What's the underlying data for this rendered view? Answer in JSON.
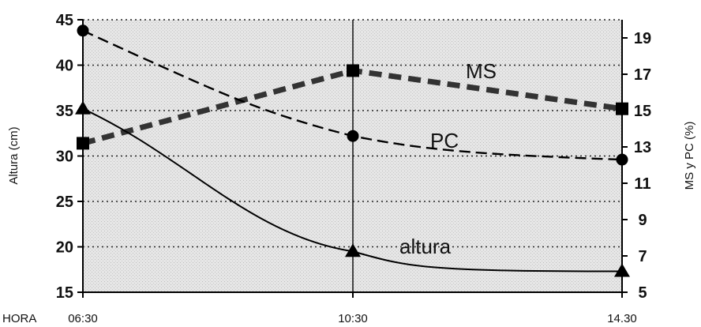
{
  "chart_data": {
    "type": "line",
    "x_label": "HORA",
    "x": [
      "06:30",
      "10:30",
      "14.30"
    ],
    "y_left": {
      "label": "Altura (cm)",
      "range": [
        15,
        45
      ],
      "ticks": [
        "15",
        "20",
        "25",
        "30",
        "35",
        "40",
        "45"
      ]
    },
    "y_right": {
      "label": "MS y PC (%)",
      "range": [
        5,
        20
      ],
      "ticks": [
        "5",
        "7",
        "9",
        "11",
        "13",
        "15",
        "17",
        "19"
      ]
    },
    "series": [
      {
        "name": "MS",
        "axis": "right",
        "line": "thick-dashed",
        "marker": "square",
        "values": [
          13.2,
          17.2,
          15.1
        ]
      },
      {
        "name": "PC",
        "axis": "right",
        "line": "dashed",
        "marker": "circle",
        "values": [
          19.4,
          13.6,
          12.3
        ]
      },
      {
        "name": "altura",
        "axis": "left",
        "line": "solid",
        "marker": "triangle",
        "values": [
          35.2,
          19.5,
          17.3
        ]
      }
    ],
    "annotations": [
      "MS",
      "PC",
      "altura"
    ],
    "grid": "horizontal dotted",
    "background": "stippled gray"
  }
}
